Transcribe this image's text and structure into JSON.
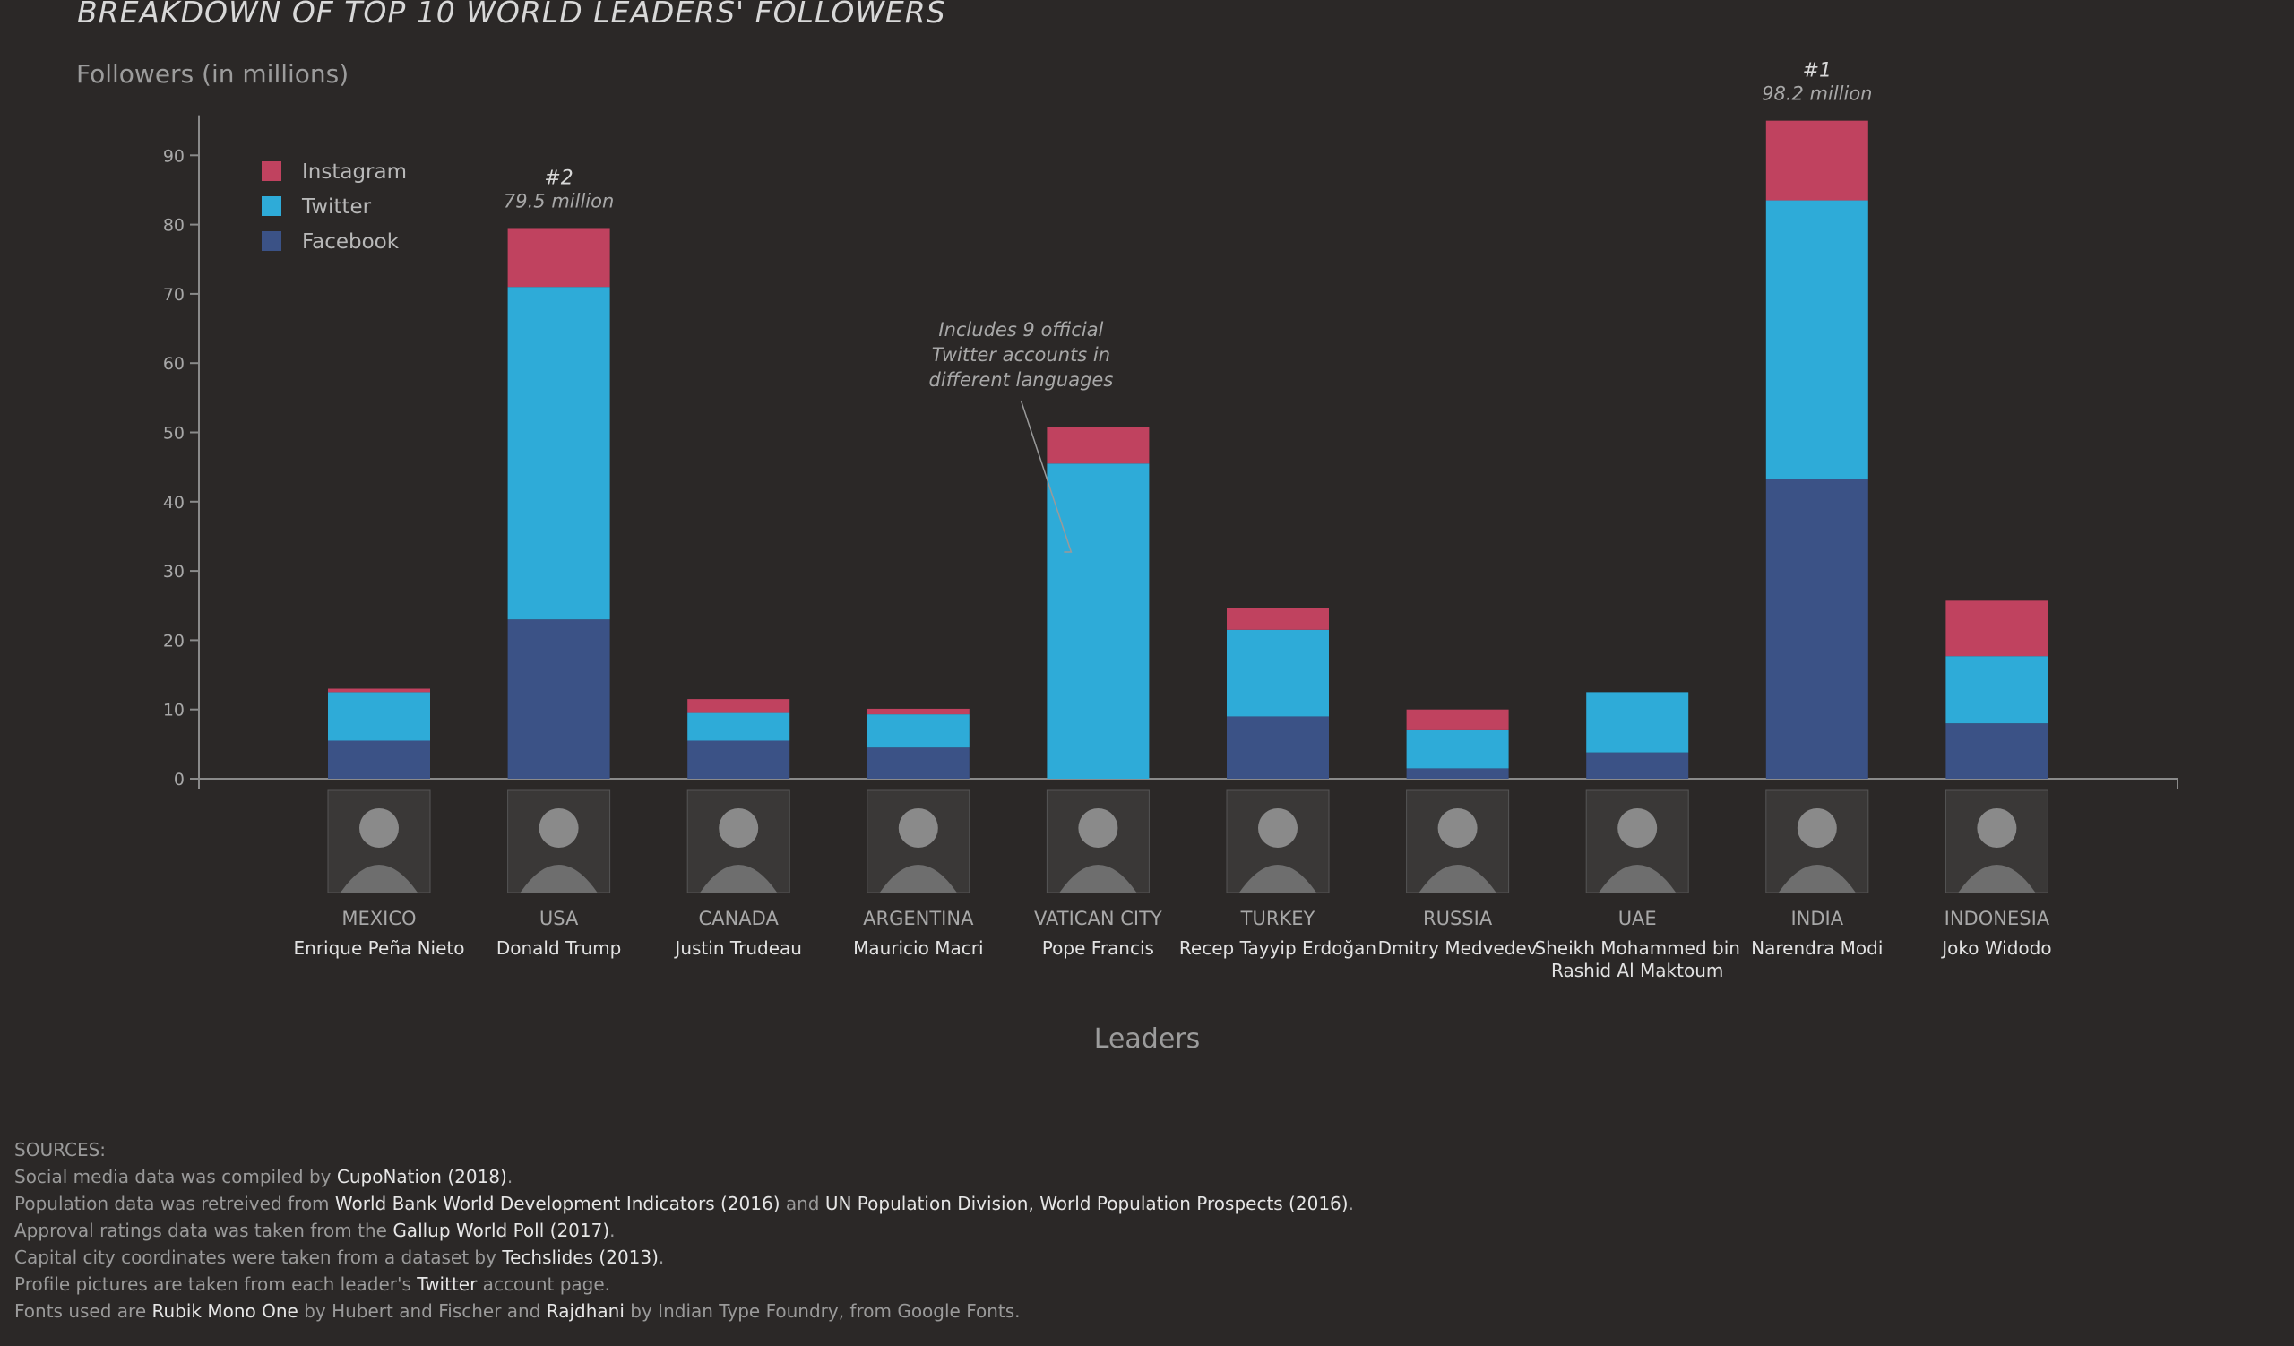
{
  "title": "BREAKDOWN OF TOP 10 WORLD LEADERS' FOLLOWERS",
  "chart_data": {
    "type": "bar",
    "stacked": true,
    "title": "BREAKDOWN OF TOP 10 WORLD LEADERS' FOLLOWERS",
    "ylabel": "Followers (in millions)",
    "xlabel": "Leaders",
    "ylim": [
      0,
      95
    ],
    "yticks": [
      0,
      10,
      20,
      30,
      40,
      50,
      60,
      70,
      80,
      90
    ],
    "grid": false,
    "legend_position": "top-left",
    "categories": [
      "MEXICO",
      "USA",
      "CANADA",
      "ARGENTINA",
      "VATICAN CITY",
      "TURKEY",
      "RUSSIA",
      "UAE",
      "INDIA",
      "INDONESIA"
    ],
    "leaders": [
      [
        "Enrique Peña Nieto"
      ],
      [
        "Donald Trump"
      ],
      [
        "Justin Trudeau"
      ],
      [
        "Mauricio Macri"
      ],
      [
        "Pope Francis"
      ],
      [
        "Recep Tayyip Erdoğan"
      ],
      [
        "Dmitry Medvedev"
      ],
      [
        "Sheikh Mohammed bin",
        "Rashid Al Maktoum"
      ],
      [
        "Narendra Modi"
      ],
      [
        "Joko Widodo"
      ]
    ],
    "series": [
      {
        "name": "Facebook",
        "color": "#3b5286",
        "values": [
          5.5,
          23.0,
          5.5,
          4.5,
          0,
          9.0,
          1.5,
          3.8,
          43.3,
          8.0
        ]
      },
      {
        "name": "Twitter",
        "color": "#2eabd8",
        "values": [
          7.0,
          48.0,
          4.0,
          4.8,
          45.5,
          12.5,
          5.5,
          8.7,
          40.2,
          9.7
        ]
      },
      {
        "name": "Instagram",
        "color": "#c0425f",
        "values": [
          0.5,
          8.5,
          2.0,
          0.8,
          5.3,
          3.2,
          3.0,
          0,
          11.5,
          8.0
        ]
      }
    ],
    "legend_order": [
      "Instagram",
      "Twitter",
      "Facebook"
    ],
    "annotations": [
      {
        "category": "USA",
        "rank": "#2",
        "value": "79.5 million"
      },
      {
        "category": "INDIA",
        "rank": "#1",
        "value": "98.2 million"
      }
    ],
    "note": {
      "category": "VATICAN CITY",
      "lines": [
        "Includes 9 official",
        "Twitter accounts in",
        "different languages"
      ]
    }
  },
  "sources": {
    "heading": "SOURCES:",
    "lines": [
      [
        [
          "Social media data was compiled by ",
          false
        ],
        [
          "CupoNation (2018)",
          true
        ],
        [
          ".",
          false
        ]
      ],
      [
        [
          "Population data was retreived from ",
          false
        ],
        [
          "World Bank World Development Indicators (2016)",
          true
        ],
        [
          " and ",
          false
        ],
        [
          "UN Population Division, World Population Prospects (2016)",
          true
        ],
        [
          ".",
          false
        ]
      ],
      [
        [
          "Approval ratings data was taken from the ",
          false
        ],
        [
          "Gallup World Poll (2017)",
          true
        ],
        [
          ".",
          false
        ]
      ],
      [
        [
          "Capital city coordinates were taken from a dataset by ",
          false
        ],
        [
          "Techslides (2013)",
          true
        ],
        [
          ".",
          false
        ]
      ],
      [
        [
          "Profile pictures are taken from each leader's ",
          false
        ],
        [
          "Twitter",
          true
        ],
        [
          " account page.",
          false
        ]
      ],
      [
        [
          "Fonts used are ",
          false
        ],
        [
          "Rubik Mono One",
          true
        ],
        [
          " by Hubert and Fischer and ",
          false
        ],
        [
          "Rajdhani",
          true
        ],
        [
          " by Indian Type Foundry, from Google Fonts.",
          false
        ]
      ]
    ]
  }
}
